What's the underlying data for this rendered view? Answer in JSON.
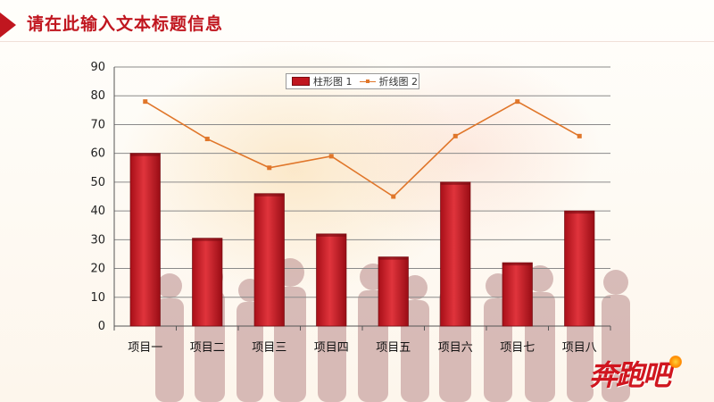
{
  "header": {
    "title": "请在此输入文本标题信息"
  },
  "logo": {
    "text": "奔跑吧"
  },
  "chart_data": {
    "type": "bar+line",
    "categories": [
      "项目一",
      "项目二",
      "项目三",
      "项目四",
      "项目五",
      "项目六",
      "项目七",
      "项目八"
    ],
    "series": [
      {
        "name": "柱形图 1",
        "type": "bar",
        "color": "#c0161f",
        "values": [
          60,
          30.5,
          46,
          32,
          24,
          50,
          22,
          40
        ]
      },
      {
        "name": "折线图 2",
        "type": "line",
        "color": "#e0762a",
        "values": [
          78,
          65,
          55,
          59,
          45,
          66,
          78,
          66
        ]
      }
    ],
    "ylim": [
      0,
      90
    ],
    "yticks": [
      0,
      10,
      20,
      30,
      40,
      50,
      60,
      70,
      80,
      90
    ],
    "grid": true,
    "legend_position": "top-center"
  }
}
